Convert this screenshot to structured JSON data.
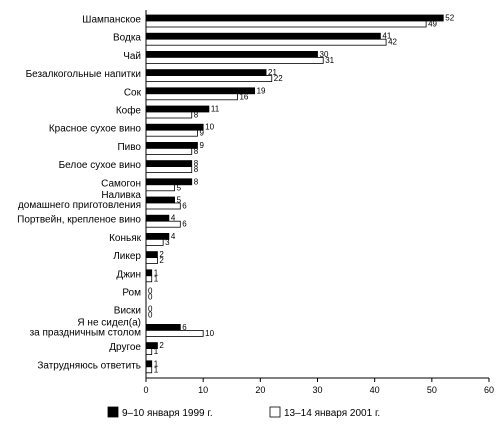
{
  "chart_data": {
    "type": "bar",
    "orientation": "horizontal",
    "categories": [
      "Шампанское",
      "Водка",
      "Чай",
      "Безалкогольные напитки",
      "Сок",
      "Кофе",
      "Красное сухое вино",
      "Пиво",
      "Белое сухое вино",
      "Самогон",
      "Наливка домашнего приготовления",
      "Портвейн, крепленое вино",
      "Коньяк",
      "Ликер",
      "Джин",
      "Ром",
      "Виски",
      "Я не сидел(а) за праздничным столом",
      "Другое",
      "Затрудняюсь ответить"
    ],
    "category_lines": [
      [
        "Шампанское"
      ],
      [
        "Водка"
      ],
      [
        "Чай"
      ],
      [
        "Безалкогольные напитки"
      ],
      [
        "Сок"
      ],
      [
        "Кофе"
      ],
      [
        "Красное сухое вино"
      ],
      [
        "Пиво"
      ],
      [
        "Белое сухое вино"
      ],
      [
        "Самогон"
      ],
      [
        "Наливка",
        "домашнего приготовления"
      ],
      [
        "Портвейн, крепленое вино"
      ],
      [
        "Коньяк"
      ],
      [
        "Ликер"
      ],
      [
        "Джин"
      ],
      [
        "Ром"
      ],
      [
        "Виски"
      ],
      [
        "Я не сидел(а)",
        "за праздничным столом"
      ],
      [
        "Другое"
      ],
      [
        "Затрудняюсь ответить"
      ]
    ],
    "series": [
      {
        "name": "9–10 января 1999 г.",
        "color": "#000000",
        "values": [
          52,
          41,
          30,
          21,
          19,
          11,
          10,
          9,
          8,
          8,
          5,
          4,
          4,
          2,
          1,
          0,
          0,
          6,
          2,
          1
        ]
      },
      {
        "name": "13–14 января 2001 г.",
        "color": "#ffffff",
        "values": [
          49,
          42,
          31,
          22,
          16,
          8,
          9,
          8,
          8,
          5,
          6,
          6,
          3,
          2,
          1,
          0,
          0,
          10,
          1,
          1
        ]
      }
    ],
    "xlim": [
      0,
      60
    ],
    "xticks": [
      0,
      10,
      20,
      30,
      40,
      50,
      60
    ],
    "grid": false,
    "legend_position": "bottom"
  }
}
